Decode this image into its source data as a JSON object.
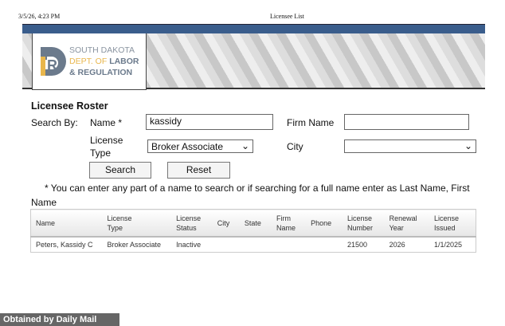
{
  "print_header": {
    "timestamp": "3/5/26, 4:23 PM",
    "title": "Licensee List"
  },
  "logo": {
    "line1": "SOUTH DAKOTA",
    "line2a": "DEPT. OF ",
    "line2b": "LABOR",
    "line3": "& REGULATION",
    "colors": {
      "gray": "#6b7a8c",
      "gold": "#e8b64c"
    }
  },
  "form": {
    "heading": "Licensee Roster",
    "search_by": "Search By:",
    "name_label": "Name *",
    "name_value": "kassidy",
    "firm_label": "Firm Name",
    "firm_value": "",
    "type_label_1": "License",
    "type_label_2": "Type",
    "type_value": "Broker Associate",
    "city_label": "City",
    "city_value": "",
    "search": "Search",
    "reset": "Reset",
    "hint": "* You can enter any part of a name to search or if searching for a full name enter as Last Name, First Name"
  },
  "table": {
    "headers": [
      [
        "Name",
        ""
      ],
      [
        "License",
        "Type"
      ],
      [
        "License",
        "Status"
      ],
      [
        "City",
        ""
      ],
      [
        "State",
        ""
      ],
      [
        "Firm",
        "Name"
      ],
      [
        "Phone",
        ""
      ],
      [
        "License",
        "Number"
      ],
      [
        "Renewal",
        "Year"
      ],
      [
        "License",
        "Issued"
      ]
    ],
    "rows": [
      [
        "Peters, Kassidy C",
        "Broker Associate",
        "Inactive",
        "",
        "",
        "",
        "",
        "21500",
        "2026",
        "1/1/2025"
      ]
    ]
  },
  "watermark": "Obtained by Daily Mail"
}
